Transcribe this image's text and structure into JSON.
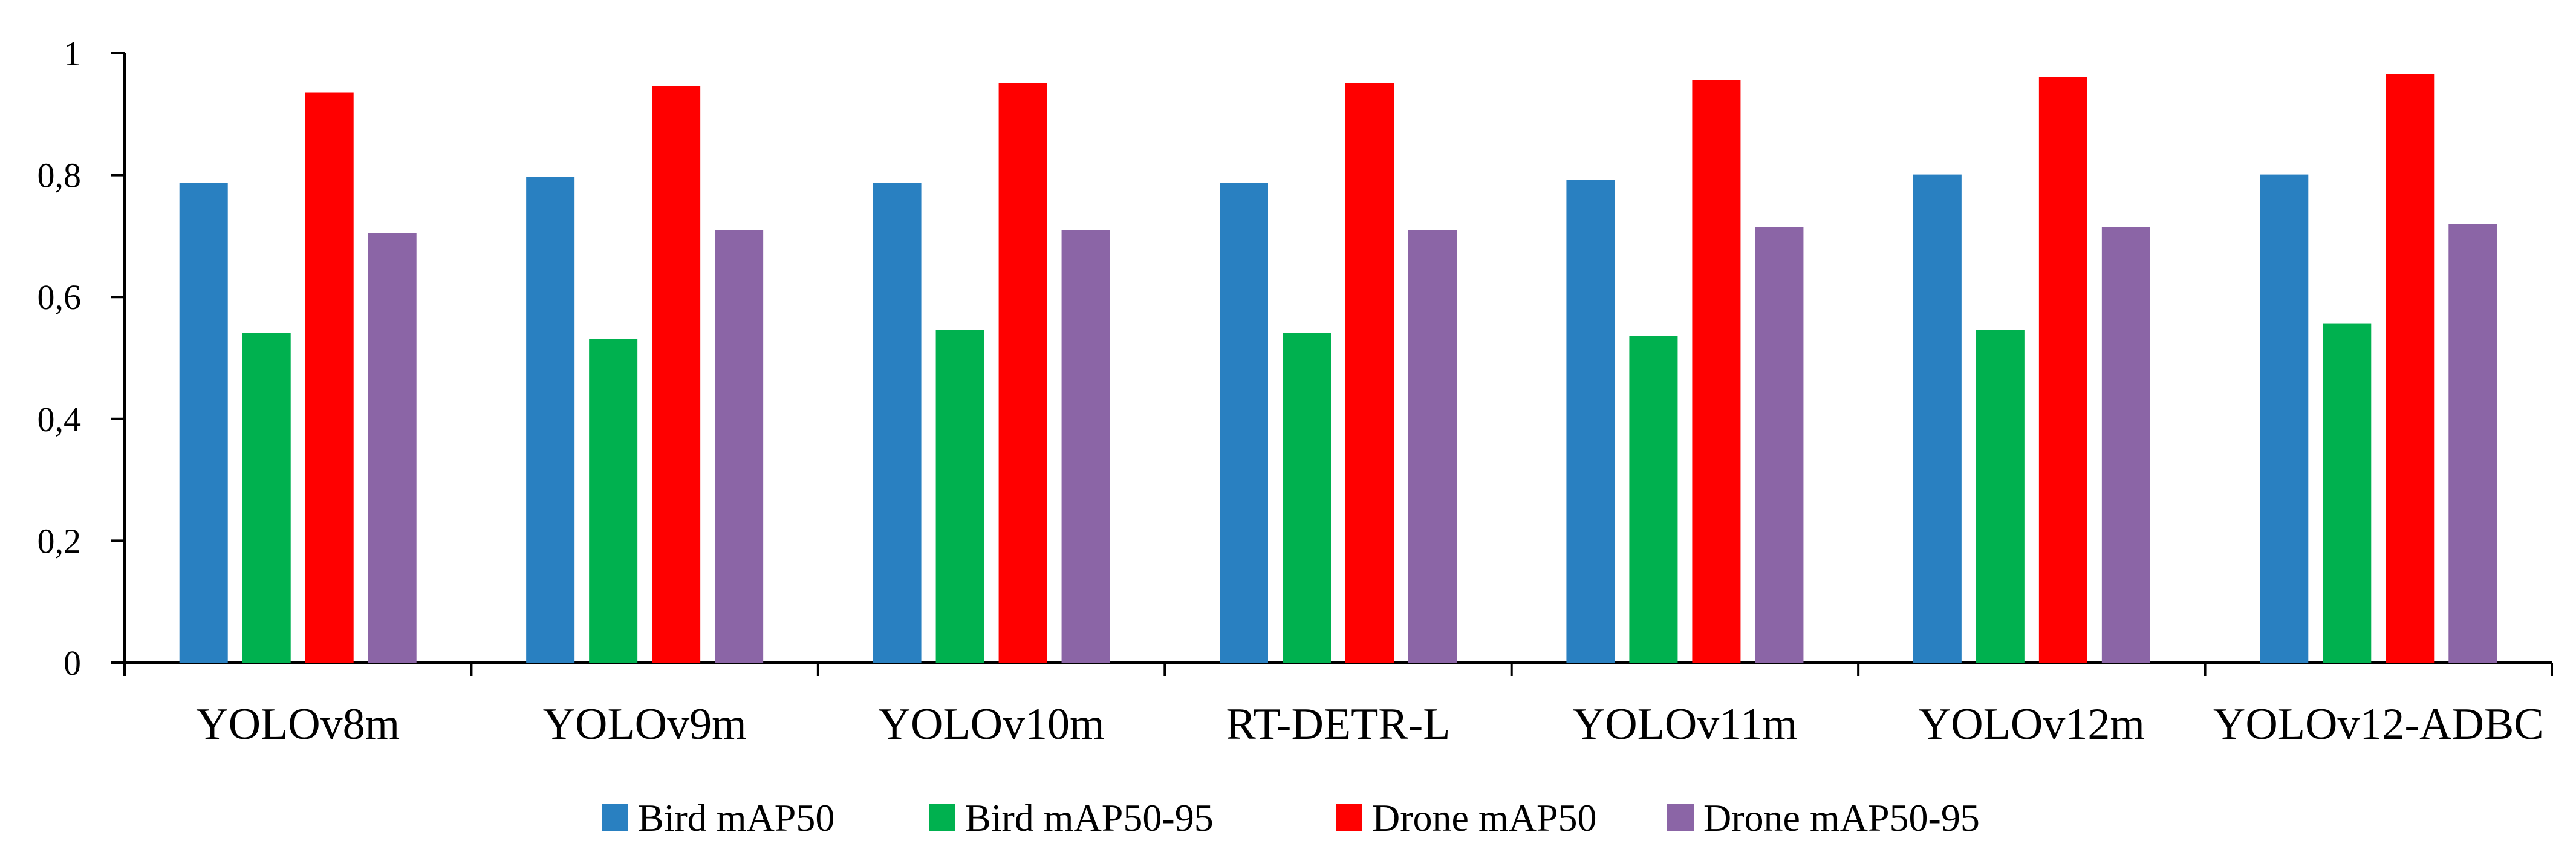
{
  "chart_data": {
    "type": "bar",
    "title": "",
    "xlabel": "",
    "ylabel": "",
    "ylim": [
      0,
      1
    ],
    "yticks": [
      "0",
      "0,2",
      "0,4",
      "0,6",
      "0,8",
      "1"
    ],
    "ytick_values": [
      0,
      0.2,
      0.4,
      0.6,
      0.8,
      1
    ],
    "grid": false,
    "legend_position": "bottom",
    "categories": [
      "YOLOv8m",
      "YOLOv9m",
      "YOLOv10m",
      "RT-DETR-L",
      "YOLOv11m",
      "YOLOv12m",
      "YOLOv12-ADBC"
    ],
    "series": [
      {
        "name": "Bird mAP50",
        "color": "#2980c1",
        "values": [
          0.787,
          0.797,
          0.787,
          0.787,
          0.792,
          0.801,
          0.801
        ]
      },
      {
        "name": "Bird mAP50-95",
        "color": "#00b14f",
        "values": [
          0.541,
          0.531,
          0.546,
          0.541,
          0.536,
          0.546,
          0.556
        ]
      },
      {
        "name": "Drone mAP50",
        "color": "#ff0000",
        "values": [
          0.936,
          0.946,
          0.951,
          0.951,
          0.956,
          0.961,
          0.966
        ]
      },
      {
        "name": "Drone mAP50-95",
        "color": "#8b65a6",
        "values": [
          0.705,
          0.71,
          0.71,
          0.71,
          0.715,
          0.715,
          0.72
        ]
      }
    ]
  }
}
